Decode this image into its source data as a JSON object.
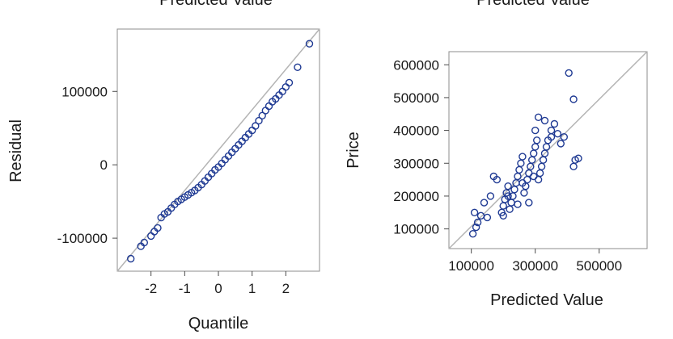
{
  "chart_data": [
    {
      "type": "scatter",
      "title": "Predicted Value",
      "xlabel": "Quantile",
      "ylabel": "Residual",
      "xlim": [
        -3.0,
        3.0
      ],
      "ylim": [
        -145000,
        185000
      ],
      "x_ticks": [
        -2,
        -1,
        0,
        1,
        2
      ],
      "x_tick_labels": [
        "-2",
        "-1",
        "0",
        "1",
        "2"
      ],
      "y_ticks": [
        -100000,
        0,
        100000
      ],
      "y_tick_labels": [
        "-100000",
        "0",
        "100000"
      ],
      "reference_line": "diagonal",
      "grid": false,
      "points": [
        [
          -2.6,
          -128000
        ],
        [
          -2.3,
          -111000
        ],
        [
          -2.2,
          -106000
        ],
        [
          -2.0,
          -97000
        ],
        [
          -1.9,
          -91000
        ],
        [
          -1.8,
          -86000
        ],
        [
          -1.7,
          -72000
        ],
        [
          -1.6,
          -67000
        ],
        [
          -1.5,
          -64000
        ],
        [
          -1.4,
          -59000
        ],
        [
          -1.3,
          -54000
        ],
        [
          -1.2,
          -50000
        ],
        [
          -1.1,
          -47000
        ],
        [
          -1.0,
          -44000
        ],
        [
          -0.9,
          -41000
        ],
        [
          -0.8,
          -38000
        ],
        [
          -0.7,
          -35000
        ],
        [
          -0.6,
          -31000
        ],
        [
          -0.5,
          -27000
        ],
        [
          -0.4,
          -22000
        ],
        [
          -0.3,
          -17000
        ],
        [
          -0.2,
          -12000
        ],
        [
          -0.1,
          -7000
        ],
        [
          0.0,
          -3000
        ],
        [
          0.1,
          2000
        ],
        [
          0.2,
          7000
        ],
        [
          0.3,
          12000
        ],
        [
          0.4,
          17000
        ],
        [
          0.5,
          22000
        ],
        [
          0.6,
          27000
        ],
        [
          0.7,
          32000
        ],
        [
          0.8,
          37000
        ],
        [
          0.9,
          42000
        ],
        [
          1.0,
          47000
        ],
        [
          1.1,
          53000
        ],
        [
          1.2,
          60000
        ],
        [
          1.3,
          67000
        ],
        [
          1.4,
          74000
        ],
        [
          1.5,
          80000
        ],
        [
          1.6,
          86000
        ],
        [
          1.7,
          90000
        ],
        [
          1.8,
          95000
        ],
        [
          1.9,
          100000
        ],
        [
          2.0,
          106000
        ],
        [
          2.1,
          112000
        ],
        [
          2.35,
          133000
        ],
        [
          2.7,
          165000
        ]
      ]
    },
    {
      "type": "scatter",
      "title": "Predicted Value",
      "xlabel": "Predicted Value",
      "ylabel": "Price",
      "xlim": [
        30000,
        650000
      ],
      "ylim": [
        40000,
        640000
      ],
      "x_ticks": [
        100000,
        300000,
        500000
      ],
      "x_tick_labels": [
        "100000",
        "300000",
        "500000"
      ],
      "y_ticks": [
        100000,
        200000,
        300000,
        400000,
        500000,
        600000
      ],
      "y_tick_labels": [
        "100000",
        "200000",
        "300000",
        "400000",
        "500000",
        "600000"
      ],
      "reference_line": "diagonal",
      "grid": false,
      "points": [
        [
          105000,
          85000
        ],
        [
          115000,
          105000
        ],
        [
          120000,
          120000
        ],
        [
          110000,
          150000
        ],
        [
          130000,
          140000
        ],
        [
          140000,
          180000
        ],
        [
          150000,
          135000
        ],
        [
          160000,
          200000
        ],
        [
          170000,
          260000
        ],
        [
          180000,
          250000
        ],
        [
          195000,
          150000
        ],
        [
          200000,
          170000
        ],
        [
          205000,
          190000
        ],
        [
          210000,
          210000
        ],
        [
          215000,
          230000
        ],
        [
          220000,
          160000
        ],
        [
          225000,
          180000
        ],
        [
          230000,
          200000
        ],
        [
          235000,
          220000
        ],
        [
          240000,
          240000
        ],
        [
          245000,
          260000
        ],
        [
          250000,
          280000
        ],
        [
          255000,
          300000
        ],
        [
          260000,
          320000
        ],
        [
          265000,
          210000
        ],
        [
          270000,
          230000
        ],
        [
          275000,
          250000
        ],
        [
          280000,
          270000
        ],
        [
          285000,
          290000
        ],
        [
          290000,
          310000
        ],
        [
          295000,
          330000
        ],
        [
          300000,
          350000
        ],
        [
          305000,
          370000
        ],
        [
          310000,
          250000
        ],
        [
          315000,
          270000
        ],
        [
          320000,
          290000
        ],
        [
          325000,
          310000
        ],
        [
          330000,
          330000
        ],
        [
          335000,
          350000
        ],
        [
          340000,
          370000
        ],
        [
          350000,
          400000
        ],
        [
          360000,
          420000
        ],
        [
          370000,
          390000
        ],
        [
          380000,
          360000
        ],
        [
          390000,
          380000
        ],
        [
          300000,
          400000
        ],
        [
          310000,
          440000
        ],
        [
          330000,
          430000
        ],
        [
          350000,
          380000
        ],
        [
          405000,
          575000
        ],
        [
          420000,
          495000
        ],
        [
          420000,
          290000
        ],
        [
          425000,
          310000
        ],
        [
          435000,
          315000
        ],
        [
          200000,
          140000
        ],
        [
          215000,
          200000
        ],
        [
          245000,
          175000
        ],
        [
          260000,
          240000
        ],
        [
          280000,
          180000
        ],
        [
          295000,
          260000
        ]
      ]
    }
  ]
}
